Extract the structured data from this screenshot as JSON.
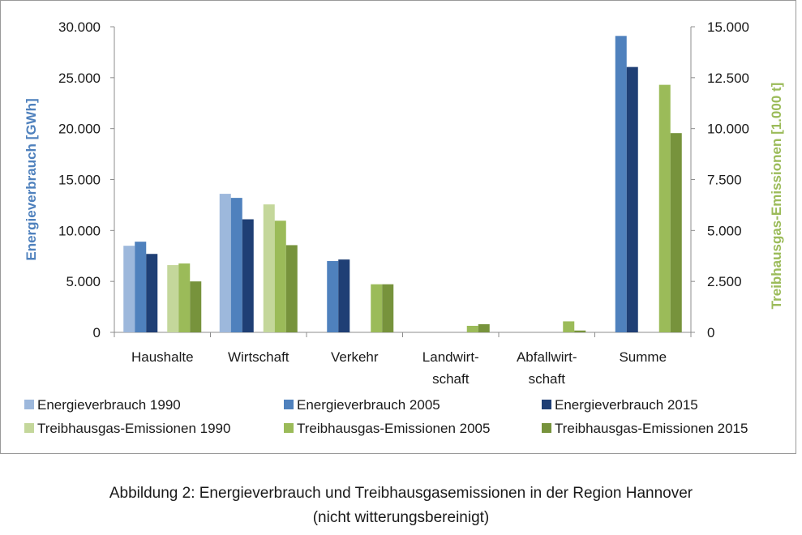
{
  "chart_data": {
    "type": "bar",
    "categories": [
      [
        "Haushalte"
      ],
      [
        "Wirtschaft"
      ],
      [
        "Verkehr"
      ],
      [
        "Landwirt-",
        "schaft"
      ],
      [
        "Abfallwirt-",
        "schaft"
      ],
      [
        "Summe"
      ]
    ],
    "ylabel_left": "Energieverbrauch [GWh]",
    "ylabel_right": "Treibhausgas-Emissionen [1.000 t]",
    "ylim_left": [
      0,
      30000
    ],
    "ylim_right": [
      0,
      15000
    ],
    "yticks_left": [
      "0",
      "5.000",
      "10.000",
      "15.000",
      "20.000",
      "25.000",
      "30.000"
    ],
    "yticks_right": [
      "0",
      "2.500",
      "5.000",
      "7.500",
      "10.000",
      "12.500",
      "15.000"
    ],
    "legend_position": "bottom",
    "grid": false,
    "series": [
      {
        "name": "Energieverbrauch 1990",
        "axis": "left",
        "color": "#9db8dc",
        "values": [
          8500,
          13600,
          null,
          null,
          null,
          null
        ]
      },
      {
        "name": "Energieverbrauch 2005",
        "axis": "left",
        "color": "#4f81bd",
        "values": [
          8900,
          13200,
          7000,
          null,
          null,
          29100
        ]
      },
      {
        "name": "Energieverbrauch 2015",
        "axis": "left",
        "color": "#1f3f75",
        "values": [
          7700,
          11100,
          7150,
          null,
          null,
          26050
        ]
      },
      {
        "name": "Treibhausgas-Emissionen 1990",
        "axis": "right",
        "color": "#c4d79b",
        "values": [
          3300,
          6280,
          null,
          null,
          null,
          null
        ]
      },
      {
        "name": "Treibhausgas-Emissionen 2005",
        "axis": "right",
        "color": "#9bbb59",
        "values": [
          3380,
          5480,
          2360,
          320,
          540,
          12150
        ]
      },
      {
        "name": "Treibhausgas-Emissionen 2015",
        "axis": "right",
        "color": "#77933c",
        "values": [
          2500,
          4280,
          2360,
          400,
          90,
          9780
        ]
      }
    ]
  },
  "caption": {
    "line1": "Abbildung 2: Energieverbrauch und Treibhausgasemissionen in der Region Hannover",
    "line2": "(nicht witterungsbereinigt)"
  },
  "colors": {
    "left_axis_label": "#4f81bd",
    "right_axis_label": "#9bbb59",
    "axis_line": "#8c8c8c"
  }
}
